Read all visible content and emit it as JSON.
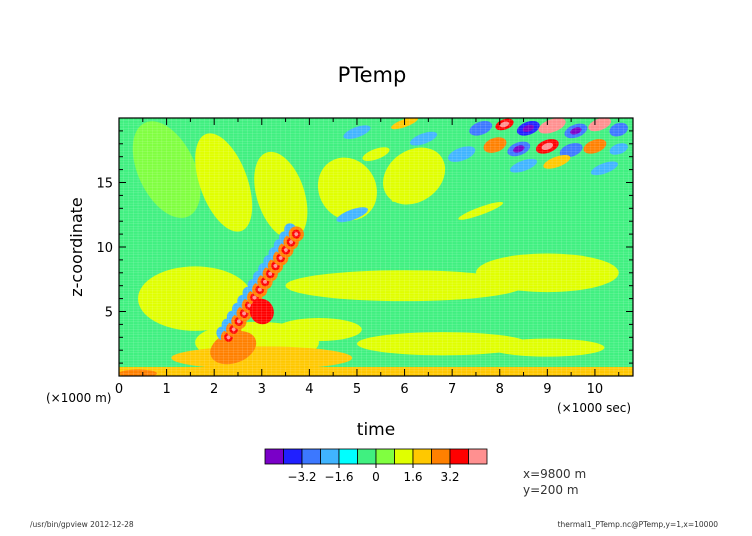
{
  "chart_data": {
    "type": "heatmap",
    "title": "PTemp",
    "xlabel": "time",
    "ylabel": "z-coordinate",
    "x_unit_note": "(×1000 sec)",
    "y_unit_note": "(×1000 m)",
    "xlim": [
      0,
      10.8
    ],
    "ylim": [
      0,
      20
    ],
    "x_ticks": [
      0,
      1,
      2,
      3,
      4,
      5,
      6,
      7,
      8,
      9,
      10
    ],
    "y_ticks": [
      5,
      10,
      15
    ],
    "grid": true,
    "colorbar": {
      "levels": [
        -4.8,
        -4.0,
        -3.2,
        -2.4,
        -1.6,
        -0.8,
        0,
        0.8,
        1.6,
        2.4,
        3.2,
        4.0,
        4.8
      ],
      "tick_labels": [
        "−3.2",
        "−1.6",
        "0",
        "1.6",
        "3.2"
      ],
      "tick_values": [
        -3.2,
        -1.6,
        0,
        1.6,
        3.2
      ],
      "colors": [
        "#7a00c8",
        "#2020ff",
        "#3c78ff",
        "#40b4ff",
        "#00ffff",
        "#40f080",
        "#80ff40",
        "#e0ff00",
        "#ffc800",
        "#ff8000",
        "#ff0000",
        "#ff9090"
      ]
    },
    "features": [
      {
        "name": "thermal-plume",
        "x": [
          2.3,
          3.8
        ],
        "y": [
          3,
          11
        ],
        "max_value": 4.5
      },
      {
        "name": "upper-gravity-waves",
        "x": [
          7,
          10.8
        ],
        "y": [
          15,
          20
        ],
        "range": [
          -4,
          4.5
        ]
      },
      {
        "name": "near-surface-warm-layer",
        "x": [
          1.5,
          4.5
        ],
        "y": [
          0.3,
          4
        ],
        "value": 1.2
      }
    ]
  },
  "annotations": {
    "position_x": "x=9800 m",
    "position_y": "y=200 m"
  },
  "footer": {
    "left": "/usr/bin/gpview   2012-12-28",
    "right": "thermal1_PTemp.nc@PTemp,y=1,x=10000"
  }
}
